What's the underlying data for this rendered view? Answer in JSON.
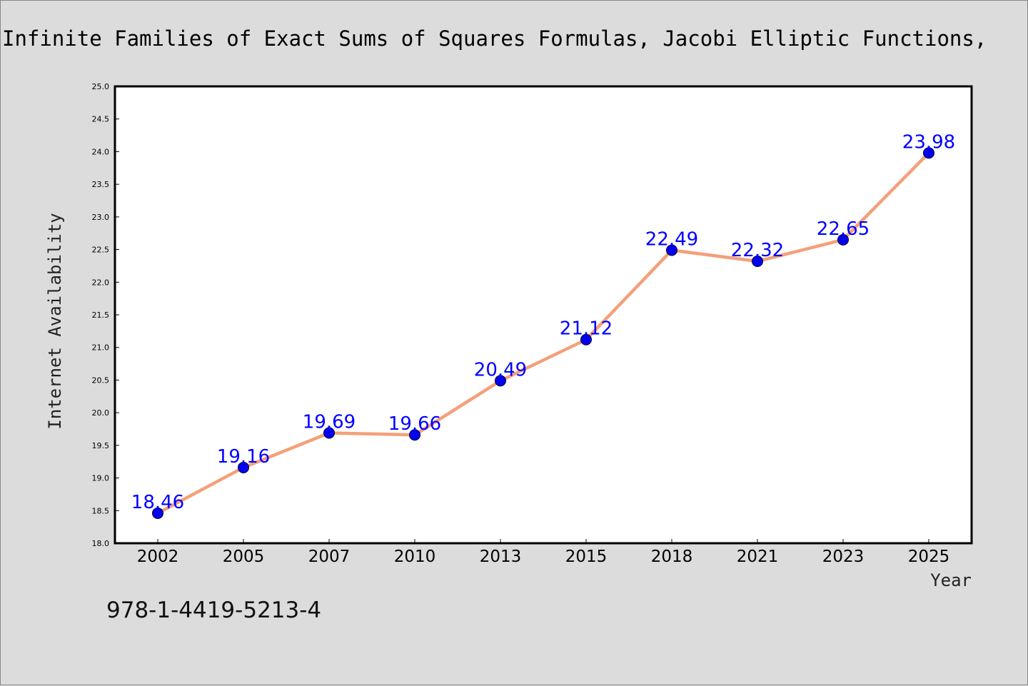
{
  "title": "Infinite Families of Exact Sums of Squares Formulas, Jacobi Elliptic Functions,",
  "footer_text": "978-1-4419-5213-4",
  "colors": {
    "background": "#dcdcdc",
    "plot_background": "#ffffff",
    "line": "#f4a07a",
    "marker": "#0000ee",
    "data_label": "#0000ff"
  },
  "chart_data": {
    "type": "line",
    "title": "Infinite Families of Exact Sums of Squares Formulas, Jacobi Elliptic Functions,",
    "xlabel": "Year",
    "ylabel": "Internet Availability",
    "categories": [
      "2002",
      "2005",
      "2007",
      "2010",
      "2013",
      "2015",
      "2018",
      "2021",
      "2023",
      "2025"
    ],
    "series": [
      {
        "values": [
          18.46,
          19.16,
          19.69,
          19.66,
          20.49,
          21.12,
          22.49,
          22.32,
          22.65,
          23.98
        ],
        "data_labels": [
          "18.46",
          "19.16",
          "19.69",
          "19.66",
          "20.49",
          "21.12",
          "22.49",
          "22.32",
          "22.65",
          "23.98"
        ]
      }
    ],
    "ylim": [
      18.0,
      25.0
    ],
    "yticks": [
      "18.0",
      "18.5",
      "19.0",
      "19.5",
      "20.0",
      "20.5",
      "21.0",
      "21.5",
      "22.0",
      "22.5",
      "23.0",
      "23.5",
      "24.0",
      "24.5",
      "25.0"
    ],
    "grid": false,
    "legend": "none",
    "markers": "circle"
  }
}
